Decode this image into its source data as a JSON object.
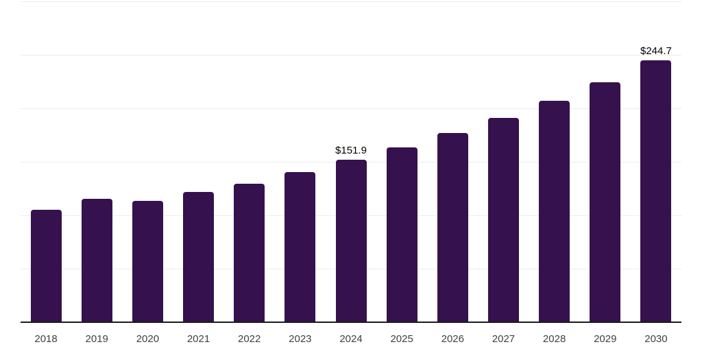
{
  "chart_data": {
    "type": "bar",
    "title": "",
    "xlabel": "",
    "ylabel": "",
    "categories": [
      "2018",
      "2019",
      "2020",
      "2021",
      "2022",
      "2023",
      "2024",
      "2025",
      "2026",
      "2027",
      "2028",
      "2029",
      "2030"
    ],
    "values": [
      105.3,
      115.5,
      113.3,
      121.8,
      129.5,
      140.2,
      151.9,
      163.5,
      177.0,
      190.8,
      207.1,
      224.4,
      244.7
    ],
    "point_labels": [
      "",
      "",
      "",
      "",
      "",
      "",
      "$151.9",
      "",
      "",
      "",
      "",
      "",
      "$244.7"
    ],
    "ylim": [
      0,
      300
    ],
    "gridline_step": 50,
    "grid": true,
    "legend": false,
    "y_tick_labels_visible": false,
    "bar_color": "#35114E",
    "gridline_color": "#ededed",
    "axis_line_color": "#1a1a1a",
    "x_label_color": "#404040",
    "value_label_color": "#000000"
  }
}
